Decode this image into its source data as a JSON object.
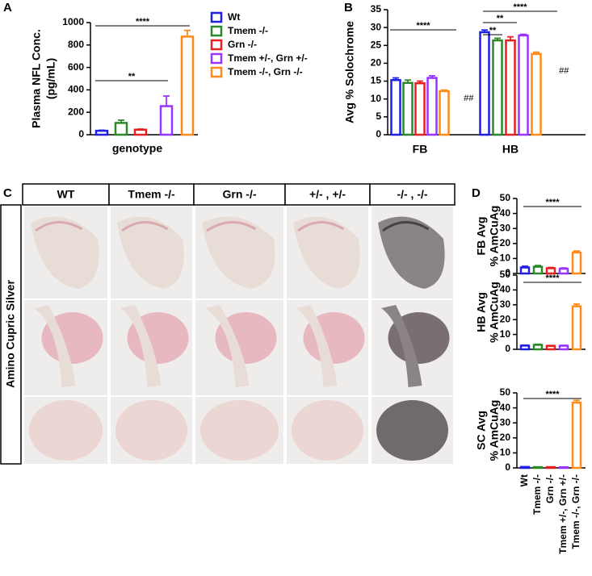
{
  "panels": [
    "A",
    "B",
    "C",
    "D"
  ],
  "histology": {
    "row_label": "Amino Cupric Silver",
    "columns": [
      "WT",
      "Tmem -/-",
      "Grn -/-",
      "+/- , +/-",
      "-/- , -/-"
    ]
  },
  "chart_data": [
    {
      "type": "bar",
      "ylabel": [
        "Plasma NFL Conc.",
        "(pg/mL)"
      ],
      "xlabel": "genotype",
      "categories": [
        null
      ],
      "series": [
        {
          "name": "Wt",
          "color": "#1f1fe6",
          "values": [
            35
          ],
          "errors": [
            5
          ]
        },
        {
          "name": "Tmem -/-",
          "color": "#2a8a2a",
          "values": [
            105
          ],
          "errors": [
            25
          ]
        },
        {
          "name": "Grn -/-",
          "color": "#e61f1f",
          "values": [
            45
          ],
          "errors": [
            5
          ]
        },
        {
          "name": "Tmem +/-, Grn +/-",
          "color": "#9933ff",
          "values": [
            255
          ],
          "errors": [
            90
          ]
        },
        {
          "name": "Tmem -/-, Grn -/-",
          "color": "#ff8c1a",
          "values": [
            875
          ],
          "errors": [
            55
          ]
        }
      ],
      "ylim": [
        0,
        1000
      ],
      "yticks": [
        0,
        200,
        400,
        600,
        800,
        1000
      ],
      "annotations": [
        "****",
        "**"
      ]
    },
    {
      "type": "bar",
      "ylabel": [
        "Avg % Solochrome"
      ],
      "categories": [
        "FB",
        "HB"
      ],
      "series": [
        {
          "color": "#1f1fe6",
          "values": [
            15.3,
            28.7
          ],
          "errors": [
            0.6,
            0.6
          ]
        },
        {
          "color": "#2a8a2a",
          "values": [
            14.5,
            26.4
          ],
          "errors": [
            0.8,
            0.6
          ]
        },
        {
          "color": "#e61f1f",
          "values": [
            14.4,
            26.4
          ],
          "errors": [
            0.6,
            1.0
          ]
        },
        {
          "color": "#9933ff",
          "values": [
            15.9,
            27.8
          ],
          "errors": [
            0.6,
            0.3
          ]
        },
        {
          "color": "#ff8c1a",
          "values": [
            12.2,
            22.6
          ],
          "errors": [
            0.3,
            0.5
          ]
        }
      ],
      "ylim": [
        0,
        35
      ],
      "yticks": [
        0,
        5,
        10,
        15,
        20,
        25,
        30,
        35
      ],
      "annotations": [
        "****",
        "##",
        "****",
        "**",
        "**",
        "##"
      ]
    },
    {
      "type": "bar",
      "ylabel": [
        "FB Avg",
        "% AmCuAg"
      ],
      "categories": [
        null,
        null,
        null,
        null,
        null
      ],
      "colors": [
        "#1f1fe6",
        "#2a8a2a",
        "#e61f1f",
        "#9933ff",
        "#ff8c1a"
      ],
      "values": [
        4,
        4.5,
        3.5,
        3.2,
        14
      ],
      "errors": [
        0.8,
        0.8,
        0.5,
        0.5,
        1
      ],
      "ylim": [
        0,
        50
      ],
      "yticks": [
        0,
        10,
        20,
        30,
        40,
        50
      ],
      "annotations": [
        "****"
      ]
    },
    {
      "type": "bar",
      "ylabel": [
        "HB Avg",
        "% AmCuAg"
      ],
      "categories": [
        null,
        null,
        null,
        null,
        null
      ],
      "colors": [
        "#1f1fe6",
        "#2a8a2a",
        "#e61f1f",
        "#9933ff",
        "#ff8c1a"
      ],
      "values": [
        2.5,
        3,
        2.3,
        2.4,
        29
      ],
      "errors": [
        0.3,
        0.4,
        0.3,
        0.3,
        1.5
      ],
      "ylim": [
        0,
        50
      ],
      "yticks": [
        0,
        10,
        20,
        30,
        40,
        50
      ],
      "annotations": [
        "****"
      ]
    },
    {
      "type": "bar",
      "ylabel": [
        "SC Avg",
        "% AmCuAg"
      ],
      "categories": [
        "Wt",
        "Tmem -/-",
        "Grn -/-",
        "Tmem +/-, Grn +/-",
        "Tmem -/-, Grn -/-"
      ],
      "colors": [
        "#1f1fe6",
        "#2a8a2a",
        "#e61f1f",
        "#9933ff",
        "#ff8c1a"
      ],
      "values": [
        0.6,
        0.5,
        0.5,
        0.4,
        43.5
      ],
      "errors": [
        0.1,
        0.1,
        0.1,
        0.1,
        1.5
      ],
      "ylim": [
        0,
        50
      ],
      "yticks": [
        0,
        10,
        20,
        30,
        40,
        50
      ],
      "annotations": [
        "****"
      ]
    }
  ]
}
